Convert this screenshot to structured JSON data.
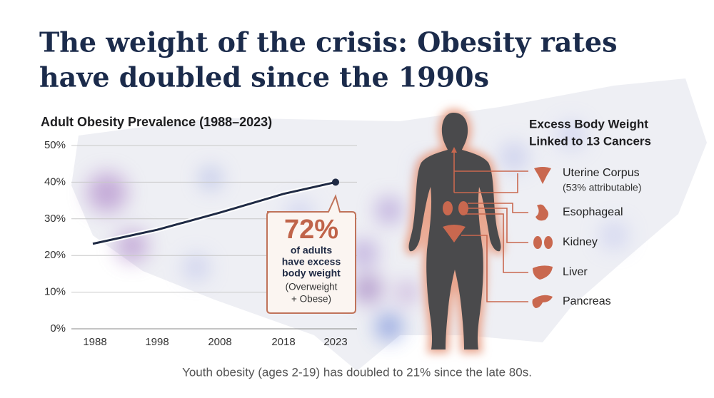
{
  "title": [
    "The weight of the crisis: Obesity rates",
    "have doubled since the 1990s"
  ],
  "chart_data": {
    "type": "line",
    "title": "Adult Obesity Prevalence (1988–2023)",
    "categories": [
      "1988",
      "1998",
      "2008",
      "2018",
      "2023"
    ],
    "values": [
      23.2,
      27,
      31.7,
      36.8,
      40
    ],
    "color": "#1f2a44",
    "ylim": [
      0,
      50
    ],
    "yticks": [
      {
        "value": 0,
        "label": "0%"
      },
      {
        "value": 10,
        "label": "10%"
      },
      {
        "value": 20,
        "label": "20%"
      },
      {
        "value": 30,
        "label": "30%"
      },
      {
        "value": 40,
        "label": "40%"
      },
      {
        "value": 50,
        "label": "50%"
      }
    ],
    "grid": true
  },
  "callout": {
    "headline": "72%",
    "text": [
      "of adults",
      "have excess",
      "body weight"
    ],
    "note": [
      "(Overweight",
      "+ Obese)"
    ]
  },
  "cancers": {
    "title": [
      "Excess Body Weight",
      "Linked to 13 Cancers"
    ],
    "items": [
      {
        "label": "Uterine Corpus",
        "note": "(53% attributable)"
      },
      {
        "label": "Esophageal"
      },
      {
        "label": "Kidney"
      },
      {
        "label": "Liver"
      },
      {
        "label": "Pancreas"
      }
    ]
  },
  "footer": "Youth obesity (ages 2-19) has doubled to 21% since the late 80s."
}
